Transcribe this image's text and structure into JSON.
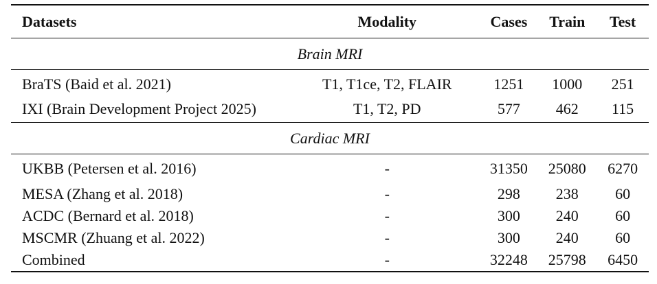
{
  "header": {
    "datasets": "Datasets",
    "modality": "Modality",
    "cases": "Cases",
    "train": "Train",
    "test": "Test"
  },
  "sections": [
    {
      "title": "Brain MRI",
      "rows": [
        {
          "dataset": "BraTS (Baid et al. 2021)",
          "modality": "T1, T1ce, T2, FLAIR",
          "cases": "1251",
          "train": "1000",
          "test": "251"
        },
        {
          "dataset": "IXI (Brain Development Project 2025)",
          "modality": "T1, T2, PD",
          "cases": "577",
          "train": "462",
          "test": "115"
        }
      ]
    },
    {
      "title": "Cardiac MRI",
      "rows": [
        {
          "dataset": "UKBB (Petersen et al. 2016)",
          "modality": "-",
          "cases": "31350",
          "train": "25080",
          "test": "6270"
        },
        {
          "dataset": "MESA (Zhang et al. 2018)",
          "modality": "-",
          "cases": "298",
          "train": "238",
          "test": "60"
        },
        {
          "dataset": "ACDC (Bernard et al. 2018)",
          "modality": "-",
          "cases": "300",
          "train": "240",
          "test": "60"
        },
        {
          "dataset": "MSCMR (Zhuang et al. 2022)",
          "modality": "-",
          "cases": "300",
          "train": "240",
          "test": "60"
        },
        {
          "dataset": "Combined",
          "modality": "-",
          "cases": "32248",
          "train": "25798",
          "test": "6450"
        }
      ]
    }
  ]
}
